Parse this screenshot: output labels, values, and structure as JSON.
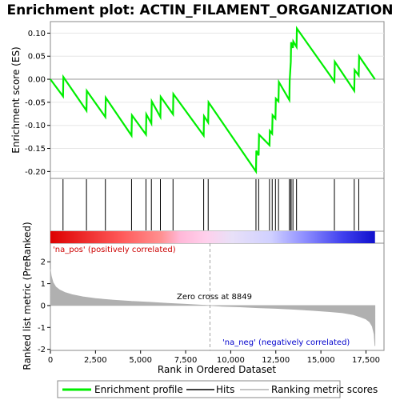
{
  "title": "Enrichment plot: ACTIN_FILAMENT_ORGANIZATION",
  "colors": {
    "profile": "#00ee00",
    "hits": "#000000",
    "metric": "#b0b0b0",
    "pos_label": "#cc0000",
    "neg_label": "#0000cc",
    "zero_line": "#a0a0a0",
    "frame": "#888888"
  },
  "legend": {
    "profile_label": "Enrichment profile",
    "hits_label": "Hits",
    "metric_label": "Ranking metric scores"
  },
  "annotations": {
    "pos_label": "'na_pos' (positively correlated)",
    "neg_label": "'na_neg' (negatively correlated)",
    "zero_cross": "Zero cross at 8849"
  },
  "chart_data": [
    {
      "type": "line",
      "name": "enrichment-profile",
      "ylabel": "Enrichment score (ES)",
      "xlim": [
        0,
        18500
      ],
      "ylim": [
        -0.215,
        0.125
      ],
      "yticks": [
        0.1,
        0.05,
        0.0,
        -0.05,
        -0.1,
        -0.15,
        -0.2
      ],
      "ytick_labels": [
        "0.10",
        "0.05",
        "0.00",
        "-0.05",
        "-0.10",
        "-0.15",
        "-0.20"
      ],
      "x": [
        0,
        700,
        720,
        2000,
        2020,
        3050,
        3070,
        4500,
        4520,
        5300,
        5320,
        5600,
        5620,
        6100,
        6120,
        6800,
        6820,
        8500,
        8520,
        8750,
        8770,
        11400,
        11420,
        11550,
        11570,
        12150,
        12170,
        12300,
        12320,
        12480,
        12500,
        12650,
        12670,
        13250,
        13270,
        13330,
        13350,
        13450,
        13470,
        13650,
        13670,
        15750,
        15770,
        16850,
        16870,
        17100,
        17120,
        18000
      ],
      "y": [
        0.0,
        -0.037,
        0.005,
        -0.068,
        -0.025,
        -0.082,
        -0.04,
        -0.122,
        -0.078,
        -0.12,
        -0.076,
        -0.096,
        -0.048,
        -0.082,
        -0.038,
        -0.076,
        -0.032,
        -0.122,
        -0.08,
        -0.094,
        -0.05,
        -0.2,
        -0.155,
        -0.165,
        -0.12,
        -0.143,
        -0.112,
        -0.118,
        -0.078,
        -0.085,
        -0.042,
        -0.048,
        -0.006,
        -0.045,
        -0.003,
        0.038,
        0.08,
        0.068,
        0.082,
        0.07,
        0.11,
        -0.005,
        0.038,
        -0.025,
        0.02,
        0.008,
        0.05,
        0.0
      ]
    },
    {
      "type": "scatter",
      "name": "hits",
      "x": [
        700,
        2000,
        3050,
        4500,
        5300,
        5600,
        6100,
        6800,
        8500,
        8750,
        11400,
        11550,
        12150,
        12300,
        12480,
        12650,
        13250,
        13330,
        13350,
        13450,
        13650,
        15750,
        16850,
        17100
      ]
    },
    {
      "type": "area",
      "name": "ranking-metric",
      "xlabel": "Rank in Ordered Dataset",
      "ylabel": "Ranked list metric (PreRanked)",
      "xlim": [
        0,
        18500
      ],
      "ylim": [
        -2.05,
        2.85
      ],
      "xticks": [
        0,
        2500,
        5000,
        7500,
        10000,
        12500,
        15000,
        17500
      ],
      "xtick_labels": [
        "0",
        "2,500",
        "5,000",
        "7,500",
        "10,000",
        "12,500",
        "15,000",
        "17,500"
      ],
      "yticks": [
        2,
        1,
        0,
        -1,
        -2
      ],
      "ytick_labels": [
        "2",
        "1",
        "0",
        "-1",
        "-2"
      ],
      "zero_cross": 8849,
      "x": [
        0,
        50,
        150,
        300,
        500,
        800,
        1200,
        1800,
        2500,
        3500,
        4500,
        5500,
        6500,
        7500,
        8200,
        8849,
        9500,
        10500,
        11500,
        12500,
        13500,
        14500,
        15500,
        16200,
        16800,
        17200,
        17500,
        17700,
        17850,
        17950,
        18000
      ],
      "y": [
        1.65,
        1.35,
        1.05,
        0.85,
        0.72,
        0.6,
        0.5,
        0.4,
        0.32,
        0.25,
        0.19,
        0.15,
        0.1,
        0.06,
        0.03,
        0.0,
        -0.03,
        -0.06,
        -0.1,
        -0.13,
        -0.17,
        -0.22,
        -0.28,
        -0.33,
        -0.42,
        -0.52,
        -0.62,
        -0.75,
        -0.95,
        -1.3,
        -1.85
      ]
    }
  ]
}
